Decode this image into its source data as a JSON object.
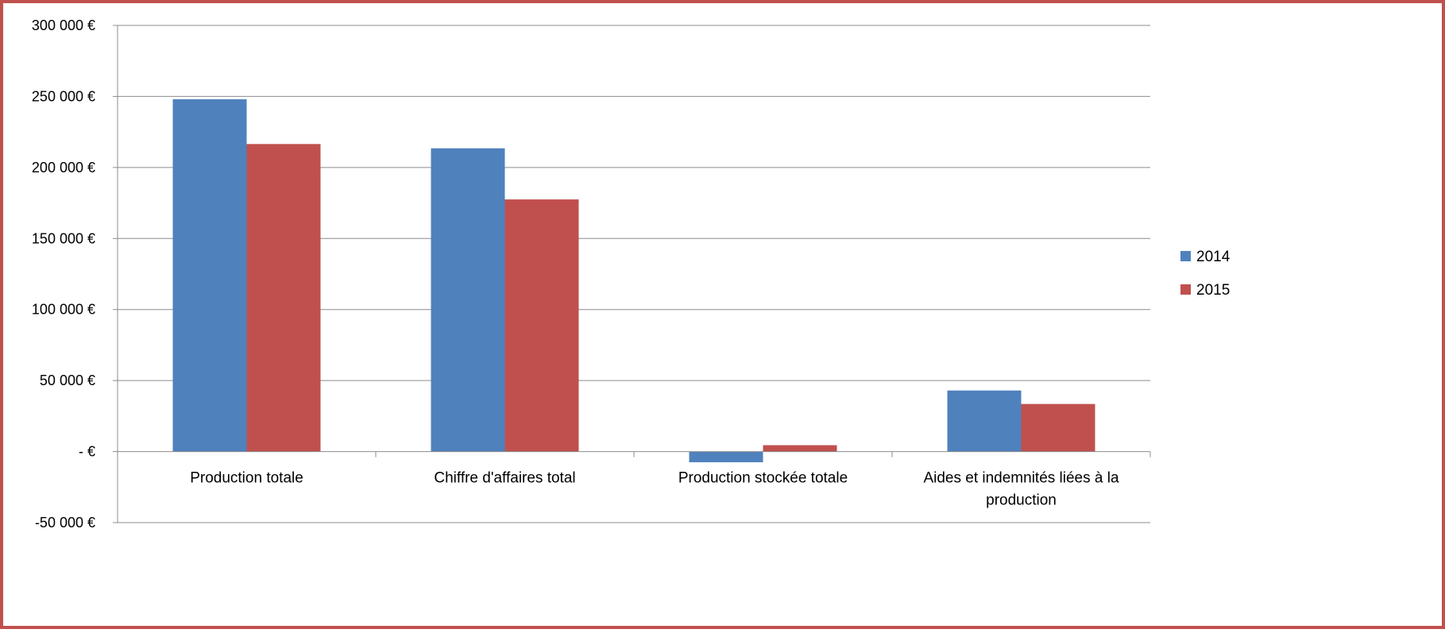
{
  "chart_data": {
    "type": "bar",
    "categories": [
      "Production totale",
      "Chiffre d'affaires total",
      "Production stockée totale",
      "Aides et indemnités liées à la production"
    ],
    "series": [
      {
        "name": "2014",
        "values": [
          248000,
          213500,
          -7500,
          43000
        ],
        "color": "#4F81BD"
      },
      {
        "name": "2015",
        "values": [
          216500,
          177500,
          4500,
          33500
        ],
        "color": "#C0504D"
      }
    ],
    "ylim": [
      -50000,
      300000
    ],
    "y_tick_step": 50000,
    "y_tick_labels": [
      "-50 000 €",
      "-  €",
      "50 000 €",
      "100 000 €",
      "150 000 €",
      "200 000 €",
      "250 000 €",
      "300 000 €"
    ],
    "grid": true,
    "legend_position": "right",
    "title": "",
    "xlabel": "",
    "ylabel": ""
  },
  "frame": {
    "border_color": "#C0504D"
  }
}
